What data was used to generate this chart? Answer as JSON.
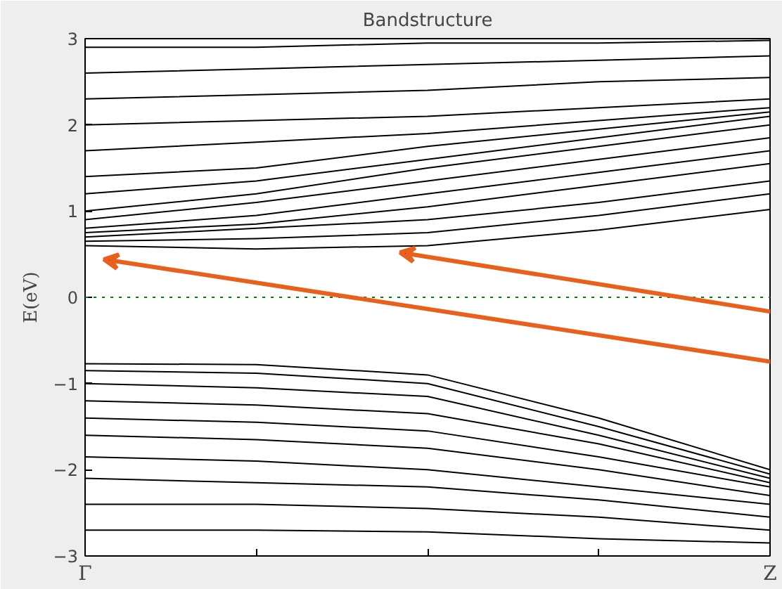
{
  "chart_data": {
    "type": "line",
    "title": "Bandstructure",
    "ylabel": "E(eV)",
    "categories": [
      "Γ",
      null,
      null,
      null,
      "Z"
    ],
    "ylim": [
      -3,
      3
    ],
    "yticks": [
      -3,
      -2,
      -1,
      0,
      1,
      2,
      3
    ],
    "grid": false,
    "marker": "none",
    "line_style": "solid",
    "ref_lines": [
      {
        "axis": "y",
        "value": 0,
        "label": null,
        "color": "#008000",
        "line_style": "dotted"
      }
    ],
    "series": [
      {
        "color": "#000000",
        "values": [
          0.6,
          0.56,
          0.6,
          0.78,
          1.02
        ]
      },
      {
        "color": "#000000",
        "values": [
          0.65,
          0.68,
          0.75,
          0.95,
          1.2
        ]
      },
      {
        "color": "#000000",
        "values": [
          0.7,
          0.8,
          0.9,
          1.1,
          1.35
        ]
      },
      {
        "color": "#000000",
        "values": [
          0.75,
          0.85,
          1.05,
          1.3,
          1.55
        ]
      },
      {
        "color": "#000000",
        "values": [
          0.8,
          0.95,
          1.2,
          1.45,
          1.7
        ]
      },
      {
        "color": "#000000",
        "values": [
          0.9,
          1.1,
          1.35,
          1.6,
          1.85
        ]
      },
      {
        "color": "#000000",
        "values": [
          1.0,
          1.2,
          1.5,
          1.75,
          2.0
        ]
      },
      {
        "color": "#000000",
        "values": [
          1.2,
          1.35,
          1.6,
          1.85,
          2.1
        ]
      },
      {
        "color": "#000000",
        "values": [
          1.4,
          1.5,
          1.75,
          1.95,
          2.15
        ]
      },
      {
        "color": "#000000",
        "values": [
          1.7,
          1.8,
          1.9,
          2.05,
          2.2
        ]
      },
      {
        "color": "#000000",
        "values": [
          2.0,
          2.05,
          2.1,
          2.2,
          2.3
        ]
      },
      {
        "color": "#000000",
        "values": [
          2.3,
          2.35,
          2.4,
          2.5,
          2.55
        ]
      },
      {
        "color": "#000000",
        "values": [
          2.6,
          2.65,
          2.7,
          2.75,
          2.8
        ]
      },
      {
        "color": "#000000",
        "values": [
          2.9,
          2.9,
          2.95,
          2.95,
          2.98
        ]
      },
      {
        "color": "#000000",
        "values": [
          -0.77,
          -0.78,
          -0.9,
          -1.4,
          -2.0
        ]
      },
      {
        "color": "#000000",
        "values": [
          -0.85,
          -0.88,
          -1.0,
          -1.5,
          -2.05
        ]
      },
      {
        "color": "#000000",
        "values": [
          -1.0,
          -1.05,
          -1.15,
          -1.6,
          -2.1
        ]
      },
      {
        "color": "#000000",
        "values": [
          -1.2,
          -1.25,
          -1.35,
          -1.7,
          -2.15
        ]
      },
      {
        "color": "#000000",
        "values": [
          -1.4,
          -1.45,
          -1.55,
          -1.85,
          -2.2
        ]
      },
      {
        "color": "#000000",
        "values": [
          -1.6,
          -1.65,
          -1.75,
          -2.0,
          -2.3
        ]
      },
      {
        "color": "#000000",
        "values": [
          -1.85,
          -1.9,
          -2.0,
          -2.2,
          -2.4
        ]
      },
      {
        "color": "#000000",
        "values": [
          -2.1,
          -2.15,
          -2.2,
          -2.35,
          -2.55
        ]
      },
      {
        "color": "#000000",
        "values": [
          -2.4,
          -2.4,
          -2.45,
          -2.55,
          -2.7
        ]
      },
      {
        "color": "#000000",
        "values": [
          -2.7,
          -2.7,
          -2.72,
          -2.8,
          -2.85
        ]
      }
    ]
  }
}
